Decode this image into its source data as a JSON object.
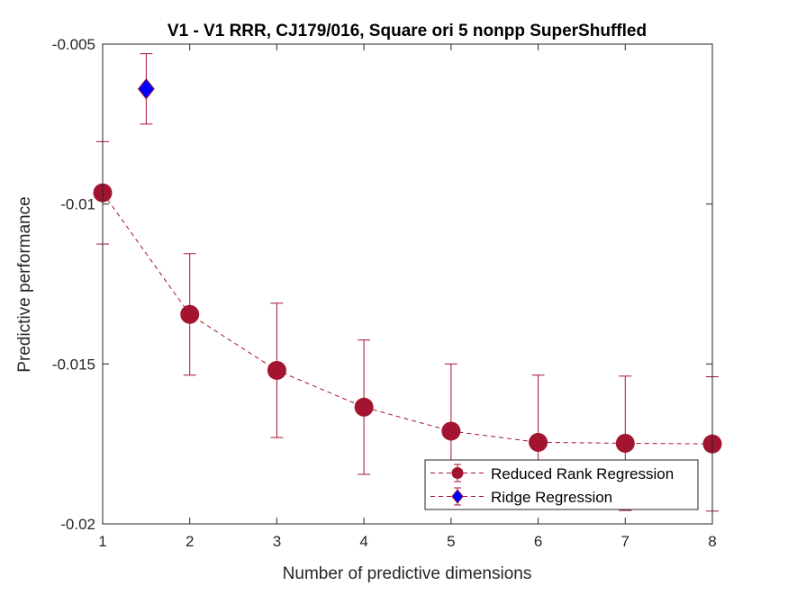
{
  "chart_data": {
    "type": "line",
    "title": "V1 - V1 RRR, CJ179/016, Square ori 5 nonpp SuperShuffled",
    "xlabel": "Number of predictive dimensions",
    "ylabel": "Predictive performance",
    "xlim": [
      1,
      8
    ],
    "ylim": [
      -0.02,
      -0.005
    ],
    "xticks": [
      1,
      2,
      3,
      4,
      5,
      6,
      7,
      8
    ],
    "xtick_labels": [
      "1",
      "2",
      "3",
      "4",
      "5",
      "6",
      "7",
      "8"
    ],
    "yticks": [
      -0.02,
      -0.015,
      -0.01,
      -0.005
    ],
    "ytick_labels": [
      "-0.02",
      "-0.015",
      "-0.01",
      "-0.005"
    ],
    "grid": false,
    "legend_position": "bottom-right",
    "series": [
      {
        "name": "Reduced Rank Regression",
        "color": "#a2142f",
        "marker": "circle",
        "line_style": "dashed",
        "x": [
          1,
          2,
          3,
          4,
          5,
          6,
          7,
          8
        ],
        "y": [
          -0.00965,
          -0.01345,
          -0.0152,
          -0.01635,
          -0.0171,
          -0.01745,
          -0.01748,
          -0.0175
        ],
        "error": [
          0.0016,
          0.0019,
          0.0021,
          0.0021,
          0.0021,
          0.0021,
          0.0021,
          0.0021
        ]
      },
      {
        "name": "Ridge Regression",
        "color": "#0000ff",
        "edge_color": "#a2142f",
        "marker": "diamond",
        "line_style": "dashed",
        "x": [
          1.5
        ],
        "y": [
          -0.0064
        ],
        "error": [
          0.0011
        ]
      }
    ]
  }
}
